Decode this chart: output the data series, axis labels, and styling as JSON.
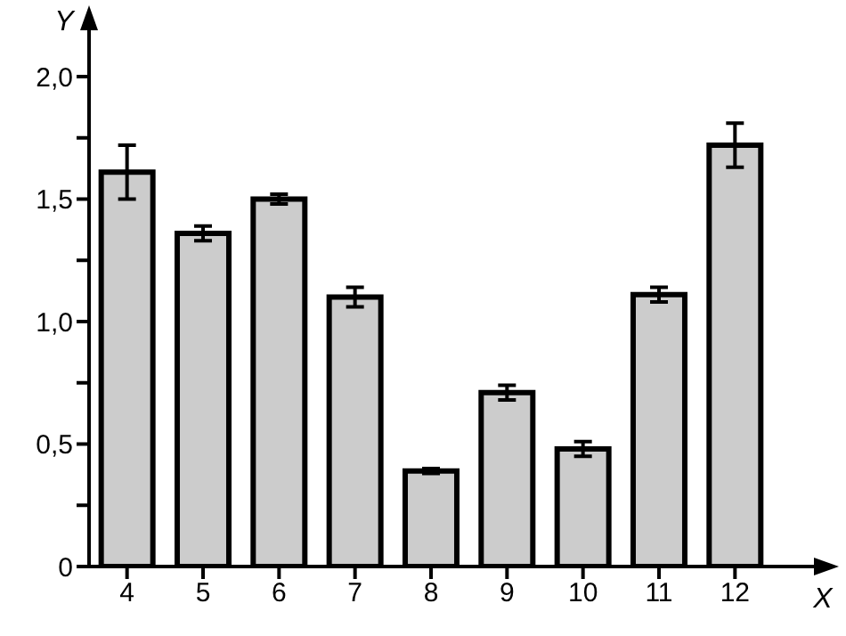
{
  "chart_data": {
    "type": "bar",
    "xlabel": "X",
    "ylabel": "Y",
    "categories": [
      "4",
      "5",
      "6",
      "7",
      "8",
      "9",
      "10",
      "11",
      "12"
    ],
    "values": [
      1.61,
      1.36,
      1.5,
      1.1,
      0.39,
      0.71,
      0.48,
      1.11,
      1.72
    ],
    "errors": [
      0.11,
      0.03,
      0.02,
      0.04,
      0.01,
      0.03,
      0.03,
      0.03,
      0.09
    ],
    "color": "#cccccc",
    "ylim": [
      0,
      2
    ],
    "yticks": [
      {
        "value": 0,
        "label": "0"
      },
      {
        "value": 0.25,
        "label": null
      },
      {
        "value": 0.5,
        "label": "0,5"
      },
      {
        "value": 0.75,
        "label": null
      },
      {
        "value": 1,
        "label": "1,0"
      },
      {
        "value": 1.25,
        "label": null
      },
      {
        "value": 1.5,
        "label": "1,5"
      },
      {
        "value": 1.75,
        "label": null
      },
      {
        "value": 2,
        "label": "2,0"
      }
    ],
    "grid": false,
    "legend": false
  }
}
